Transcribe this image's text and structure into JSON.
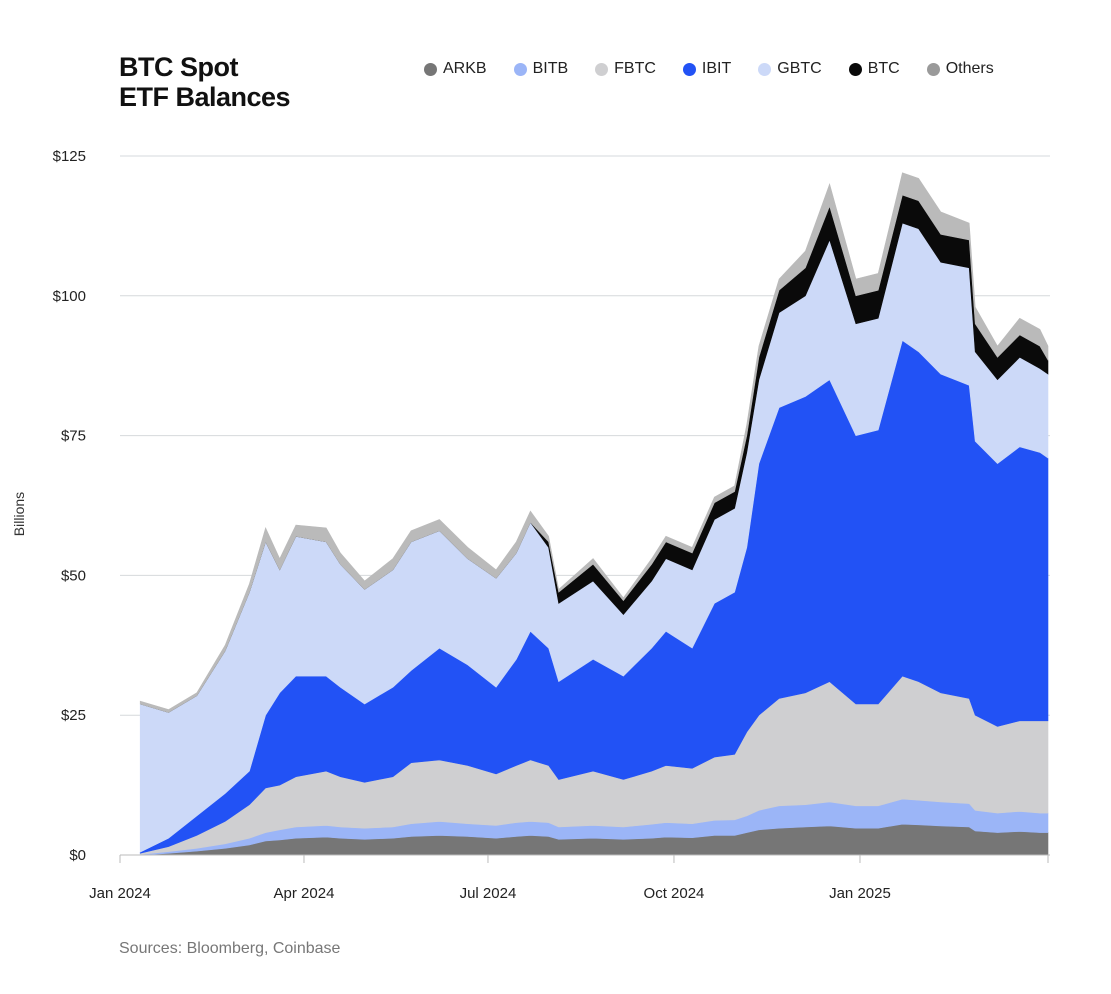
{
  "chart_data": {
    "type": "area",
    "stacked": true,
    "title_lines": [
      "BTC Spot",
      "ETF Balances"
    ],
    "ylabel": "Billions",
    "source": "Sources: Bloomberg, Coinbase",
    "ylim": [
      0,
      125
    ],
    "y_ticks": [
      0,
      25,
      50,
      75,
      100,
      125
    ],
    "y_tick_labels": [
      "$0",
      "$25",
      "$50",
      "$75",
      "$100",
      "$125"
    ],
    "x_ticks": [
      "2024-01-01",
      "2024-04-01",
      "2024-07-01",
      "2024-10-01",
      "2025-01-01",
      "2025-04-04"
    ],
    "x_tick_labels": [
      "Jan 2024",
      "Apr 2024",
      "Jul 2024",
      "Oct 2024",
      "Jan 2025",
      ""
    ],
    "xlim": [
      "2024-01-01",
      "2025-04-04"
    ],
    "grid": true,
    "legend_position": "top-right",
    "x": [
      "2024-01-11",
      "2024-01-25",
      "2024-02-08",
      "2024-02-22",
      "2024-03-05",
      "2024-03-13",
      "2024-03-20",
      "2024-03-28",
      "2024-04-12",
      "2024-04-19",
      "2024-05-01",
      "2024-05-15",
      "2024-05-24",
      "2024-06-07",
      "2024-06-21",
      "2024-07-05",
      "2024-07-15",
      "2024-07-22",
      "2024-07-31",
      "2024-08-05",
      "2024-08-22",
      "2024-09-06",
      "2024-09-20",
      "2024-09-27",
      "2024-10-10",
      "2024-10-21",
      "2024-10-31",
      "2024-11-06",
      "2024-11-12",
      "2024-11-22",
      "2024-12-05",
      "2024-12-17",
      "2024-12-30",
      "2025-01-10",
      "2025-01-22",
      "2025-01-30",
      "2025-02-10",
      "2025-02-24",
      "2025-02-27",
      "2025-03-10",
      "2025-03-21",
      "2025-03-31",
      "2025-04-04"
    ],
    "series": [
      {
        "name": "ARKB",
        "color": "#767676",
        "values": [
          0,
          0.3,
          0.7,
          1.2,
          1.8,
          2.5,
          2.7,
          3,
          3.2,
          3,
          2.8,
          3,
          3.3,
          3.5,
          3.3,
          3,
          3.3,
          3.5,
          3.3,
          2.8,
          3,
          2.8,
          3,
          3.2,
          3.1,
          3.5,
          3.5,
          4,
          4.5,
          4.8,
          5,
          5.2,
          4.8,
          4.8,
          5.5,
          5.4,
          5.2,
          5,
          4.3,
          4,
          4.2,
          4,
          4
        ]
      },
      {
        "name": "BITB",
        "color": "#9bb5f7",
        "values": [
          0.1,
          0.3,
          0.5,
          0.8,
          1.2,
          1.5,
          1.8,
          2,
          2.1,
          2,
          2,
          2,
          2.3,
          2.5,
          2.3,
          2.3,
          2.5,
          2.5,
          2.5,
          2.2,
          2.3,
          2.2,
          2.5,
          2.6,
          2.5,
          2.7,
          2.8,
          3,
          3.5,
          4,
          4,
          4.3,
          4,
          4,
          4.5,
          4.4,
          4.3,
          4.2,
          3.7,
          3.5,
          3.6,
          3.5,
          3.5
        ]
      },
      {
        "name": "FBTC",
        "color": "#cfcfd1",
        "values": [
          0.2,
          0.9,
          2.3,
          4,
          6,
          8,
          8,
          9,
          9.7,
          9,
          8.2,
          9,
          10.9,
          11,
          10.4,
          9.2,
          10.2,
          11,
          10.2,
          8.5,
          9.7,
          8.5,
          9.5,
          10.2,
          9.9,
          11.3,
          11.7,
          15,
          17,
          19.2,
          20,
          21.5,
          18.2,
          18.2,
          22,
          21.2,
          19.5,
          18.8,
          17,
          15.5,
          16.2,
          16.5,
          16.5
        ]
      },
      {
        "name": "IBIT",
        "color": "#2252f5",
        "values": [
          0.2,
          1.5,
          3.5,
          5,
          6,
          13,
          16.5,
          18,
          17,
          16,
          14,
          16,
          16.5,
          20,
          18,
          15.5,
          19,
          23,
          21,
          17.5,
          20,
          18.5,
          22,
          24,
          21.5,
          27.5,
          29,
          33,
          45,
          52,
          53,
          54,
          48,
          49,
          60,
          59,
          57,
          56,
          49,
          47,
          49,
          48,
          47
        ]
      },
      {
        "name": "GBTC",
        "color": "#ccd9f8",
        "values": [
          26.5,
          22.5,
          21.5,
          25.5,
          32,
          31,
          22,
          25,
          24,
          22,
          20.5,
          21,
          23,
          21,
          19,
          19.5,
          19,
          19.5,
          18,
          14,
          14,
          11,
          12,
          13,
          14,
          15,
          15,
          17,
          15,
          17,
          18,
          25,
          20,
          20,
          21,
          22,
          20,
          21,
          16,
          15,
          16,
          15,
          15
        ]
      },
      {
        "name": "BTC",
        "color": "#0a0a0a",
        "values": [
          0,
          0,
          0,
          0,
          0,
          0,
          0,
          0,
          0,
          0,
          0,
          0,
          0,
          0,
          0,
          0,
          0,
          0,
          1,
          2,
          3,
          2.5,
          3,
          3,
          3,
          3,
          3,
          3,
          4,
          4,
          5,
          6,
          5,
          5,
          5,
          5,
          5,
          5,
          5,
          4,
          4,
          4,
          2.5
        ]
      },
      {
        "name": "Others",
        "color": "#bababa",
        "legend_color": "#9a9a9a",
        "values": [
          0.5,
          0.5,
          0.5,
          1,
          1.5,
          2.5,
          2,
          2,
          2.5,
          2,
          1.5,
          2,
          2,
          2,
          2,
          1.5,
          2,
          2,
          1,
          0.5,
          1,
          0.5,
          1,
          1,
          1,
          1,
          1,
          2,
          2,
          2,
          3,
          4,
          3,
          3,
          4,
          4,
          4,
          3,
          3,
          2,
          3,
          3,
          2.5
        ]
      }
    ]
  }
}
